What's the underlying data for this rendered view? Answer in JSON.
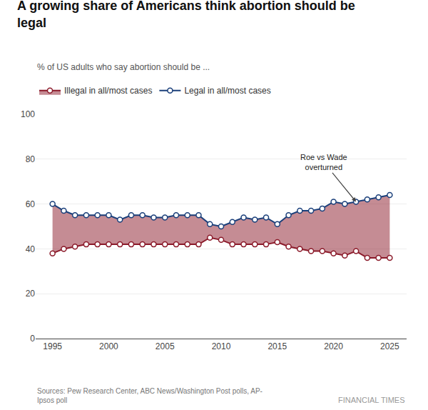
{
  "chart_data": {
    "type": "line",
    "title": "A growing share of Americans think abortion should be\nlegal",
    "subtitle": "% of US adults who say abortion should be ...",
    "x": [
      1995,
      1996,
      1997,
      1998,
      1999,
      2000,
      2001,
      2002,
      2003,
      2004,
      2005,
      2006,
      2007,
      2008,
      2009,
      2010,
      2011,
      2012,
      2013,
      2014,
      2015,
      2016,
      2017,
      2018,
      2019,
      2020,
      2021,
      2022,
      2023,
      2024,
      2025
    ],
    "series": [
      {
        "name": "Legal in all/most cases",
        "color": "#1a3f7a",
        "marker": "circle",
        "values": [
          60,
          57,
          55,
          55,
          55,
          55,
          53,
          55,
          55,
          54,
          54,
          55,
          55,
          55,
          51,
          50,
          52,
          54,
          53,
          54,
          51,
          55,
          57,
          57,
          58,
          61,
          60,
          61,
          62,
          63,
          64
        ]
      },
      {
        "name": "Illegal in all/most cases",
        "color": "#8b1a2a",
        "marker": "circle",
        "values": [
          38,
          40,
          41,
          42,
          42,
          42,
          42,
          42,
          42,
          42,
          42,
          42,
          42,
          42,
          45,
          44,
          42,
          42,
          42,
          42,
          43,
          41,
          40,
          39,
          39,
          38,
          37,
          39,
          36,
          36,
          36
        ]
      }
    ],
    "annotations": [
      {
        "text": "Roe vs Wade\noverturned",
        "x": 2022,
        "y": 61
      },
      {
        "text": "Sources: Pew Research Center, ABC News/Washington Post polls, AP-\nIpsos poll"
      },
      {
        "text": "FINANCIAL TIMES"
      }
    ],
    "xlim": [
      1993.5,
      2026.5
    ],
    "xticks": [
      1995,
      2000,
      2005,
      2010,
      2015,
      2020,
      2025
    ],
    "ylim": [
      0,
      100
    ],
    "yticks": [
      0,
      20,
      40,
      60,
      80,
      100
    ],
    "grid": true,
    "legend": "top left"
  }
}
